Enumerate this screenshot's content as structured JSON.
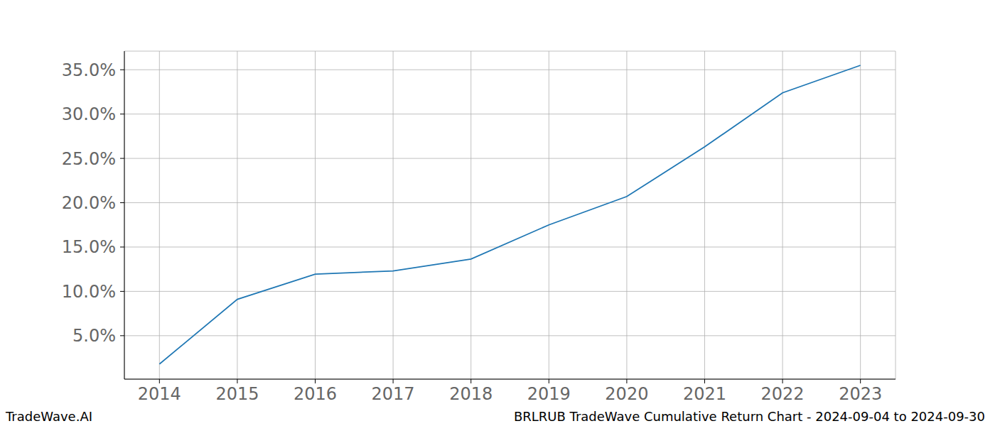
{
  "chart_data": {
    "type": "line",
    "title": "BRLRUB TradeWave Cumulative Return Chart - 2024-09-04 to 2024-09-30",
    "watermark": "TradeWave.AI",
    "x": [
      2014,
      2015,
      2016,
      2017,
      2018,
      2019,
      2020,
      2021,
      2022,
      2023
    ],
    "values": [
      1.8,
      9.1,
      11.95,
      12.3,
      13.65,
      17.5,
      20.7,
      26.3,
      32.4,
      35.5
    ],
    "color": "#1f77b4",
    "xlim": [
      2013.55,
      2023.45
    ],
    "xticks": [
      2014,
      2015,
      2016,
      2017,
      2018,
      2019,
      2020,
      2021,
      2022,
      2023
    ],
    "ylim": [
      0.1,
      37.1
    ],
    "yticks": [
      {
        "value": 5,
        "label": "5.0%"
      },
      {
        "value": 10,
        "label": "10.0%"
      },
      {
        "value": 15,
        "label": "15.0%"
      },
      {
        "value": 20,
        "label": "20.0%"
      },
      {
        "value": 25,
        "label": "25.0%"
      },
      {
        "value": 30,
        "label": "30.0%"
      },
      {
        "value": 35,
        "label": "35.0%"
      }
    ],
    "grid": true
  }
}
